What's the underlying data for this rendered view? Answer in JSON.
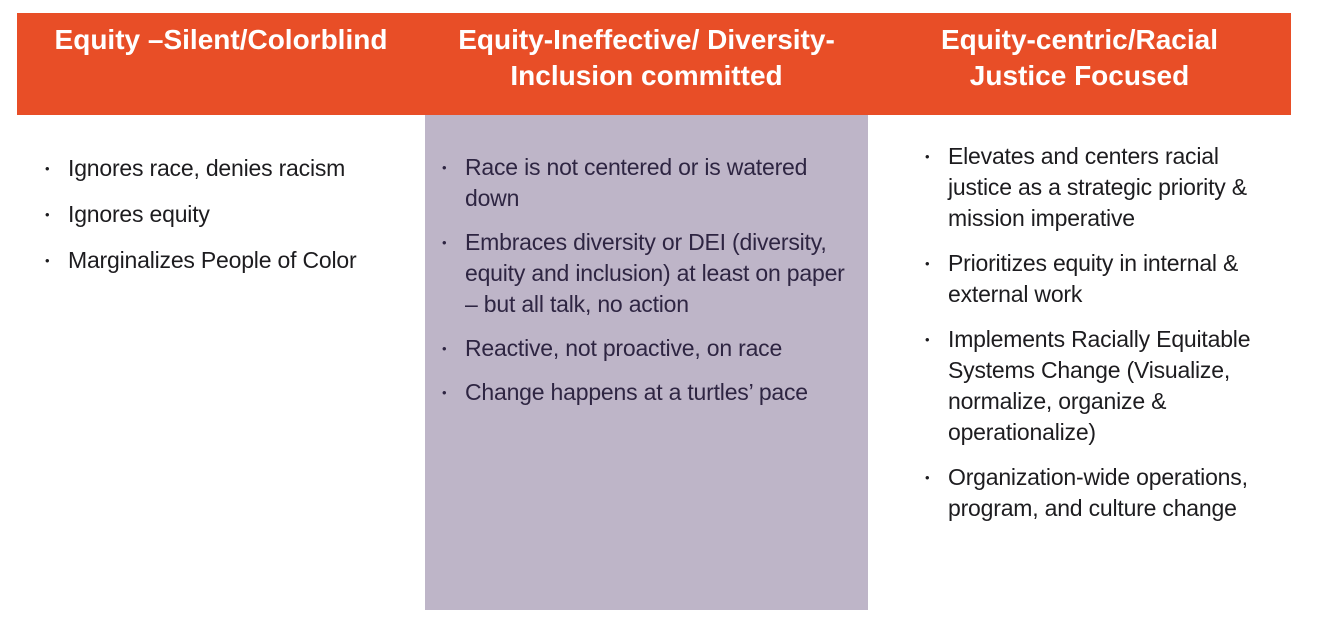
{
  "colors": {
    "page_bg": "#FFFFFF",
    "header_bg": "#E84E27",
    "header_text": "#FFFFFF",
    "mid_panel_bg": "#BEB5C8",
    "body_text": "#1D1C1F",
    "mid_text": "#2E2542"
  },
  "bullet_glyph": "•",
  "columns": [
    {
      "id": "equity-silent-colorblind",
      "title_lines": [
        "Equity –Silent/Colorblind"
      ],
      "items": [
        "Ignores race, denies racism",
        "Ignores equity",
        "Marginalizes People of Color"
      ]
    },
    {
      "id": "equity-ineffective-diversity-inclusion-committed",
      "title_lines": [
        "Equity-Ineffective/ Diversity-",
        "Inclusion committed"
      ],
      "items": [
        "Race is not centered or is watered down",
        "Embraces diversity or DEI (diversity, equity and inclusion) at least on paper – but all talk, no action",
        "Reactive, not proactive, on race",
        "Change happens at a turtles’ pace"
      ]
    },
    {
      "id": "equity-centric-racial-justice-focused",
      "title_lines": [
        "Equity-centric/Racial",
        "Justice Focused"
      ],
      "items": [
        "Elevates and centers racial justice as a strategic priority & mission imperative",
        "Prioritizes equity in internal & external work",
        "Implements Racially Equitable Systems Change (Visualize, normalize, organize & operationalize)",
        "Organization-wide operations, program, and culture change"
      ]
    }
  ]
}
